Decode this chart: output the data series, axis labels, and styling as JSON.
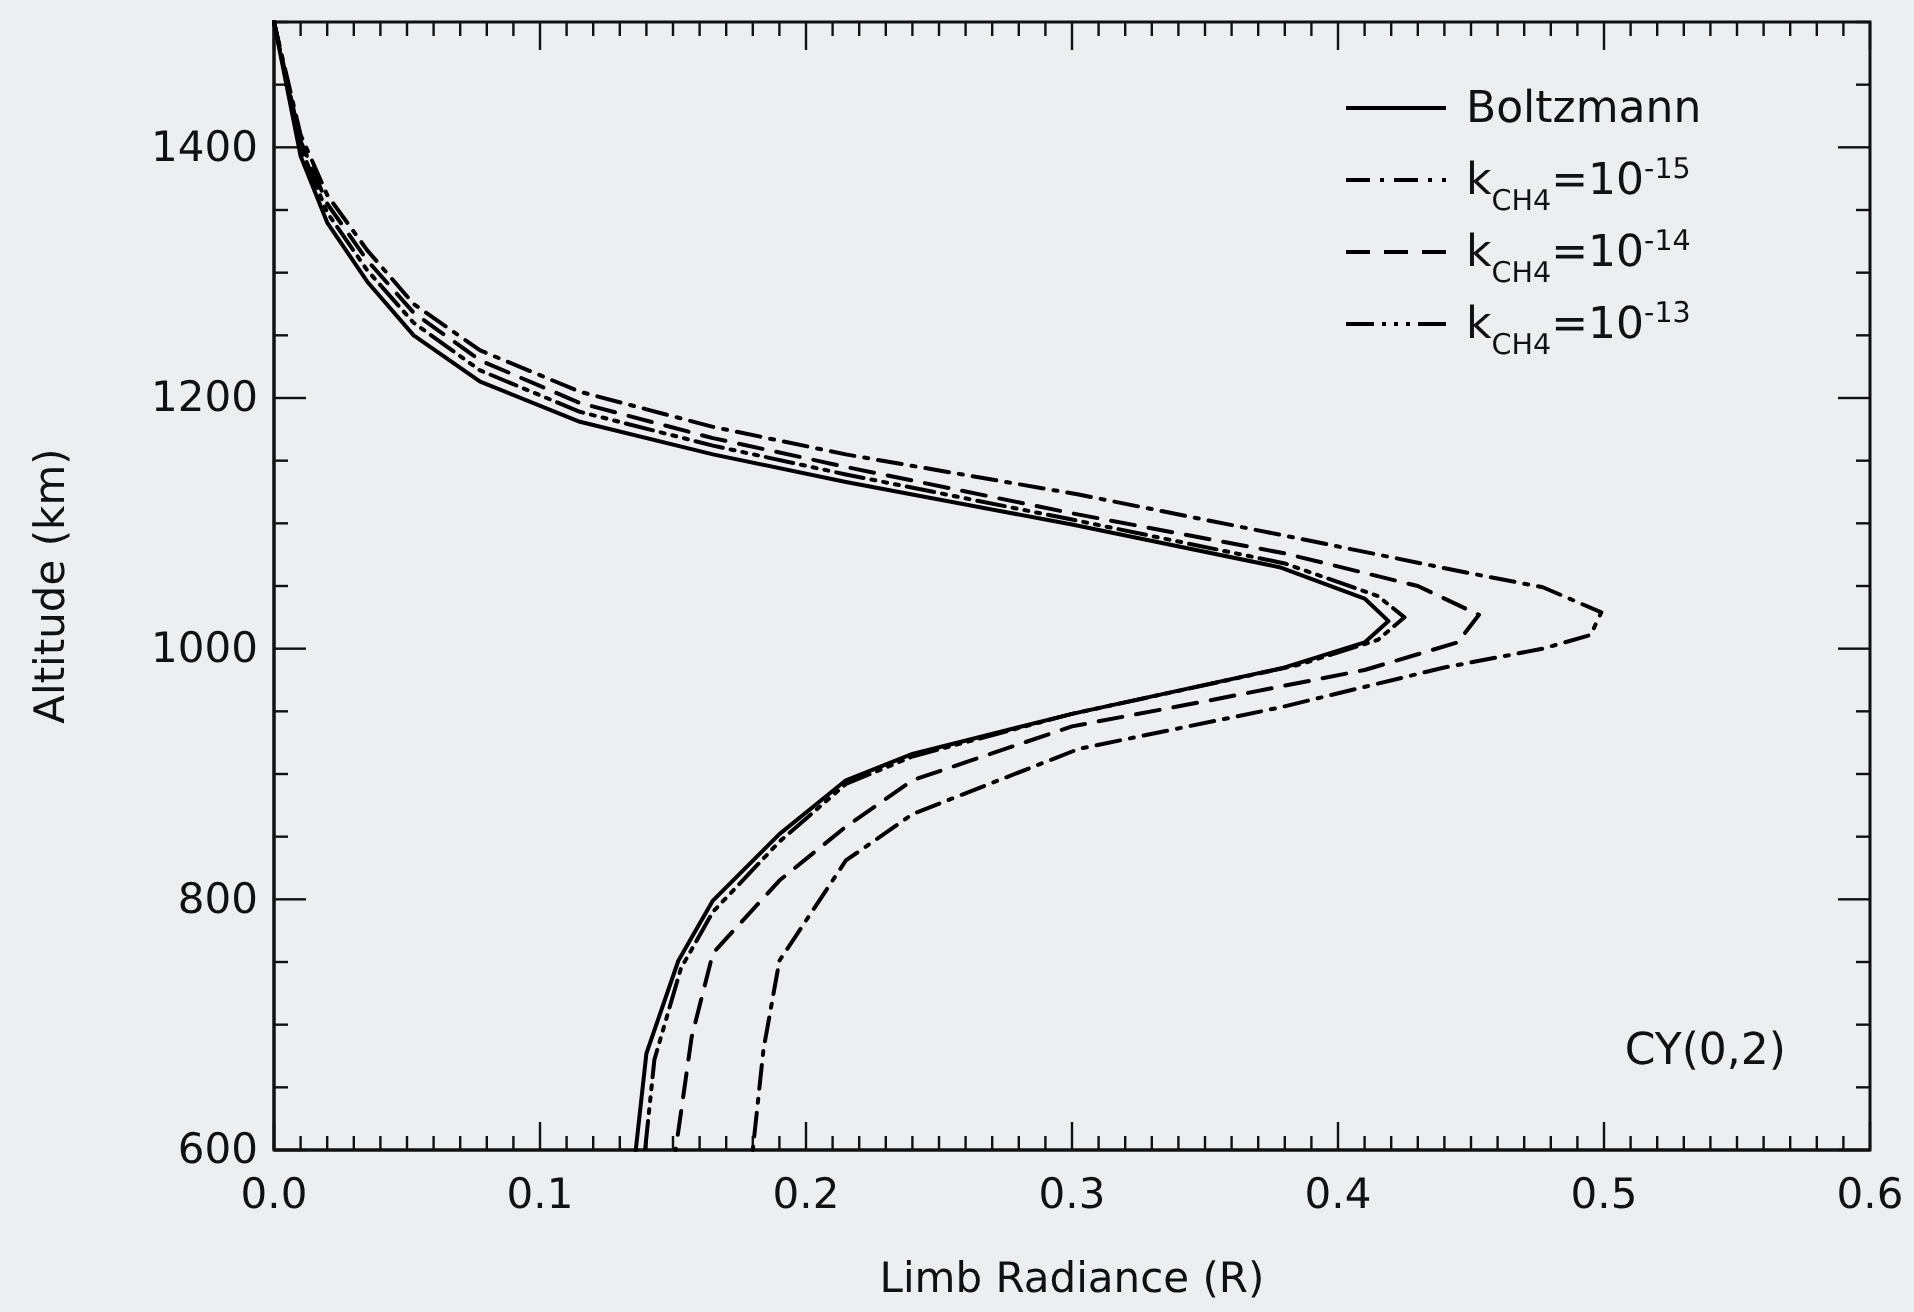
{
  "chart_data": {
    "type": "line",
    "xlabel": "Limb Radiance (R)",
    "ylabel": "Altitude (km)",
    "xlim": [
      0,
      0.6
    ],
    "ylim": [
      600,
      1500
    ],
    "xticks": [
      {
        "value": 0,
        "label": "0.0"
      },
      {
        "value": 0.01,
        "label": null
      },
      {
        "value": 0.02,
        "label": null
      },
      {
        "value": 0.03,
        "label": null
      },
      {
        "value": 0.04,
        "label": null
      },
      {
        "value": 0.05,
        "label": null
      },
      {
        "value": 0.06,
        "label": null
      },
      {
        "value": 0.07,
        "label": null
      },
      {
        "value": 0.08,
        "label": null
      },
      {
        "value": 0.09,
        "label": null
      },
      {
        "value": 0.1,
        "label": "0.1"
      },
      {
        "value": 0.11,
        "label": null
      },
      {
        "value": 0.12,
        "label": null
      },
      {
        "value": 0.13,
        "label": null
      },
      {
        "value": 0.14,
        "label": null
      },
      {
        "value": 0.15,
        "label": null
      },
      {
        "value": 0.16,
        "label": null
      },
      {
        "value": 0.17,
        "label": null
      },
      {
        "value": 0.18,
        "label": null
      },
      {
        "value": 0.19,
        "label": null
      },
      {
        "value": 0.2,
        "label": "0.2"
      },
      {
        "value": 0.21,
        "label": null
      },
      {
        "value": 0.22,
        "label": null
      },
      {
        "value": 0.23,
        "label": null
      },
      {
        "value": 0.24,
        "label": null
      },
      {
        "value": 0.25,
        "label": null
      },
      {
        "value": 0.26,
        "label": null
      },
      {
        "value": 0.27,
        "label": null
      },
      {
        "value": 0.28,
        "label": null
      },
      {
        "value": 0.29,
        "label": null
      },
      {
        "value": 0.3,
        "label": "0.3"
      },
      {
        "value": 0.31,
        "label": null
      },
      {
        "value": 0.32,
        "label": null
      },
      {
        "value": 0.33,
        "label": null
      },
      {
        "value": 0.34,
        "label": null
      },
      {
        "value": 0.35,
        "label": null
      },
      {
        "value": 0.36,
        "label": null
      },
      {
        "value": 0.37,
        "label": null
      },
      {
        "value": 0.38,
        "label": null
      },
      {
        "value": 0.39,
        "label": null
      },
      {
        "value": 0.4,
        "label": "0.4"
      },
      {
        "value": 0.41,
        "label": null
      },
      {
        "value": 0.42,
        "label": null
      },
      {
        "value": 0.43,
        "label": null
      },
      {
        "value": 0.44,
        "label": null
      },
      {
        "value": 0.45,
        "label": null
      },
      {
        "value": 0.46,
        "label": null
      },
      {
        "value": 0.47,
        "label": null
      },
      {
        "value": 0.48,
        "label": null
      },
      {
        "value": 0.49,
        "label": null
      },
      {
        "value": 0.5,
        "label": "0.5"
      },
      {
        "value": 0.51,
        "label": null
      },
      {
        "value": 0.52,
        "label": null
      },
      {
        "value": 0.53,
        "label": null
      },
      {
        "value": 0.54,
        "label": null
      },
      {
        "value": 0.55,
        "label": null
      },
      {
        "value": 0.56,
        "label": null
      },
      {
        "value": 0.57,
        "label": null
      },
      {
        "value": 0.58,
        "label": null
      },
      {
        "value": 0.59,
        "label": null
      },
      {
        "value": 0.6,
        "label": "0.6"
      }
    ],
    "yticks": [
      600,
      {
        "value": 650,
        "label": null
      },
      {
        "value": 700,
        "label": null
      },
      {
        "value": 750,
        "label": null
      },
      800,
      {
        "value": 850,
        "label": null
      },
      {
        "value": 900,
        "label": null
      },
      {
        "value": 950,
        "label": null
      },
      1000,
      {
        "value": 1050,
        "label": null
      },
      {
        "value": 1100,
        "label": null
      },
      {
        "value": 1150,
        "label": null
      },
      1200,
      {
        "value": 1250,
        "label": null
      },
      {
        "value": 1300,
        "label": null
      },
      {
        "value": 1350,
        "label": null
      },
      1400,
      {
        "value": 1450,
        "label": null
      },
      {
        "value": 1500,
        "label": null
      }
    ],
    "grid": false,
    "legend": "top right",
    "annotations": [
      "CY(0,2)"
    ],
    "series": [
      {
        "name": "Boltzmann",
        "color": "#000000",
        "line_style": "solid",
        "x": [
          0,
          0.01,
          0.02,
          0.035,
          0.0525,
          0.0775,
          0.115,
          0.165,
          0.215,
          0.3,
          0.378,
          0.41,
          0.419,
          0.41,
          0.38,
          0.3,
          0.24,
          0.215,
          0.19,
          0.165,
          0.152,
          0.14,
          0.136
        ],
        "values": [
          1500,
          1393,
          1340,
          1293,
          1250,
          1213,
          1181,
          1155,
          1133,
          1099,
          1065,
          1040,
          1022,
          1005,
          985,
          948,
          916,
          895,
          852,
          799,
          751,
          677,
          600
        ]
      },
      {
        "name": "k$_{CH4}$=10$^{-15}$",
        "color": "#000000",
        "line_style": "dashdot",
        "x": [
          0,
          0.01,
          0.02,
          0.035,
          0.0525,
          0.0775,
          0.115,
          0.165,
          0.215,
          0.3025,
          0.378,
          0.45,
          0.477,
          0.499,
          0.495,
          0.477,
          0.44,
          0.378,
          0.3025,
          0.24,
          0.215,
          0.19,
          0.184,
          0.18
        ],
        "values": [
          1500,
          1410,
          1362,
          1318,
          1275,
          1238,
          1205,
          1177,
          1155,
          1123,
          1091,
          1060,
          1049,
          1029,
          1011,
          1000,
          985,
          953,
          920,
          868,
          831,
          751,
          680,
          600
        ]
      },
      {
        "name": "k$_{CH4}$=10$^{-14}$",
        "color": "#000000",
        "line_style": "dashed",
        "x": [
          0,
          0.01,
          0.02,
          0.035,
          0.0525,
          0.0775,
          0.115,
          0.165,
          0.215,
          0.3,
          0.38,
          0.43,
          0.453,
          0.445,
          0.41,
          0.35,
          0.3,
          0.24,
          0.215,
          0.19,
          0.165,
          0.157,
          0.151
        ],
        "values": [
          1500,
          1405,
          1355,
          1310,
          1268,
          1230,
          1196,
          1168,
          1145,
          1108,
          1076,
          1050,
          1027,
          1005,
          983,
          958,
          938,
          895,
          858,
          815,
          757,
          690,
          600
        ]
      },
      {
        "name": "k$_{CH4}$=10$^{-13}$",
        "color": "#000000",
        "line_style": "dashdotdot",
        "x": [
          0,
          0.01,
          0.02,
          0.035,
          0.0525,
          0.0775,
          0.115,
          0.165,
          0.215,
          0.3,
          0.38,
          0.415,
          0.425,
          0.415,
          0.385,
          0.3,
          0.24,
          0.215,
          0.19,
          0.165,
          0.153,
          0.143,
          0.1395
        ],
        "values": [
          1500,
          1400,
          1348,
          1302,
          1260,
          1222,
          1189,
          1162,
          1139,
          1103,
          1068,
          1042,
          1025,
          1007,
          987,
          948,
          914,
          892,
          846,
          790,
          745,
          672,
          600
        ]
      }
    ]
  }
}
